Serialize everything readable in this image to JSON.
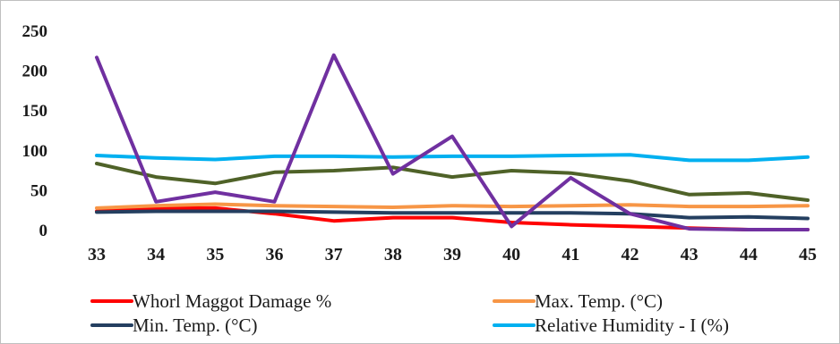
{
  "chart_data": {
    "type": "line",
    "title": "",
    "xlabel": "",
    "ylabel": "",
    "categories": [
      "33",
      "34",
      "35",
      "36",
      "37",
      "38",
      "39",
      "40",
      "41",
      "42",
      "43",
      "44",
      "45"
    ],
    "ylim": [
      0,
      250
    ],
    "y_ticks": [
      0,
      50,
      100,
      150,
      200,
      250
    ],
    "grid": false,
    "legend_position": "bottom",
    "series": [
      {
        "name": "Whorl Maggot Damage %",
        "color": "#ff0000",
        "values": [
          23,
          27,
          27,
          20,
          11,
          15,
          15,
          9,
          6,
          4,
          2,
          0,
          0
        ]
      },
      {
        "name": "Max. Temp. (°C)",
        "color": "#f79646",
        "values": [
          27,
          30,
          32,
          30,
          29,
          28,
          30,
          29,
          30,
          31,
          29,
          29,
          30
        ]
      },
      {
        "name": "Min. Temp. (°C)",
        "color": "#243f60",
        "values": [
          22,
          23,
          23,
          23,
          22,
          21,
          21,
          21,
          21,
          20,
          15,
          16,
          14
        ]
      },
      {
        "name": "Relative Humidity - I (%)",
        "color": "#00b0f0",
        "values": [
          93,
          90,
          88,
          92,
          92,
          91,
          92,
          92,
          93,
          94,
          87,
          87,
          91
        ]
      },
      {
        "name": "",
        "color": "#4f6228",
        "values": [
          83,
          66,
          58,
          72,
          74,
          78,
          66,
          74,
          71,
          61,
          44,
          46,
          37
        ]
      },
      {
        "name": "",
        "color": "#7030a0",
        "values": [
          216,
          35,
          47,
          35,
          219,
          70,
          117,
          4,
          65,
          20,
          1,
          0,
          0
        ]
      }
    ]
  }
}
